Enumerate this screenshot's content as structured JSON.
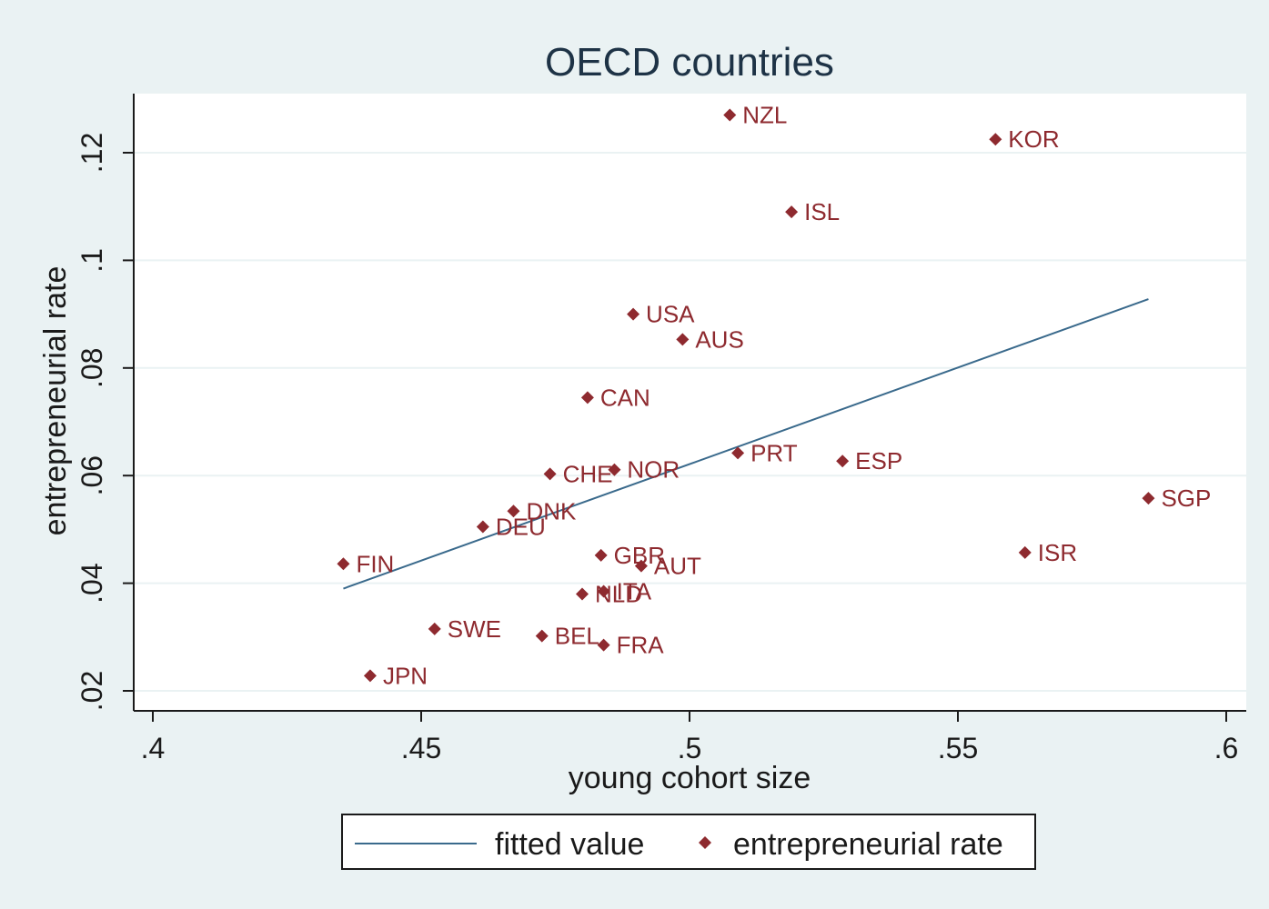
{
  "chart_data": {
    "type": "scatter",
    "title": "OECD countries",
    "xlabel": "young cohort size",
    "ylabel": "entrepreneurial rate",
    "xlim": [
      0.4,
      0.6
    ],
    "ylim": [
      0.02,
      0.13
    ],
    "x_ticks": [
      {
        "value": 0.4,
        "label": ".4"
      },
      {
        "value": 0.45,
        "label": ".45"
      },
      {
        "value": 0.5,
        "label": ".5"
      },
      {
        "value": 0.55,
        "label": ".55"
      },
      {
        "value": 0.6,
        "label": ".6"
      }
    ],
    "y_ticks": [
      {
        "value": 0.02,
        "label": ".02"
      },
      {
        "value": 0.04,
        "label": ".04"
      },
      {
        "value": 0.06,
        "label": ".06"
      },
      {
        "value": 0.08,
        "label": ".08"
      },
      {
        "value": 0.1,
        "label": ".1"
      },
      {
        "value": 0.12,
        "label": ".12"
      }
    ],
    "grid": true,
    "legend": "bottom",
    "colors": {
      "points": "#8e2a2f",
      "fit_line": "#3a6a8c"
    },
    "series": [
      {
        "name": "entrepreneurial rate",
        "kind": "scatter",
        "points": [
          {
            "label": "NZL",
            "x": 0.5075,
            "y": 0.127
          },
          {
            "label": "KOR",
            "x": 0.557,
            "y": 0.1225
          },
          {
            "label": "ISL",
            "x": 0.519,
            "y": 0.109
          },
          {
            "label": "USA",
            "x": 0.4895,
            "y": 0.09
          },
          {
            "label": "AUS",
            "x": 0.4987,
            "y": 0.0853
          },
          {
            "label": "CAN",
            "x": 0.481,
            "y": 0.0745
          },
          {
            "label": "PRT",
            "x": 0.509,
            "y": 0.0642
          },
          {
            "label": "ESP",
            "x": 0.5285,
            "y": 0.0627
          },
          {
            "label": "CHE",
            "x": 0.474,
            "y": 0.0603
          },
          {
            "label": "NOR",
            "x": 0.486,
            "y": 0.0611
          },
          {
            "label": "SGP",
            "x": 0.5855,
            "y": 0.0558
          },
          {
            "label": "DNK",
            "x": 0.4672,
            "y": 0.0534
          },
          {
            "label": "DEU",
            "x": 0.4615,
            "y": 0.0505
          },
          {
            "label": "ISR",
            "x": 0.5625,
            "y": 0.0457
          },
          {
            "label": "GBR",
            "x": 0.4835,
            "y": 0.0452
          },
          {
            "label": "AUT",
            "x": 0.491,
            "y": 0.0432
          },
          {
            "label": "FIN",
            "x": 0.4355,
            "y": 0.0436
          },
          {
            "label": "ITA",
            "x": 0.484,
            "y": 0.0385
          },
          {
            "label": "NLD",
            "x": 0.48,
            "y": 0.038
          },
          {
            "label": "SWE",
            "x": 0.4525,
            "y": 0.0315
          },
          {
            "label": "BEL",
            "x": 0.4725,
            "y": 0.0302
          },
          {
            "label": "FRA",
            "x": 0.484,
            "y": 0.0285
          },
          {
            "label": "JPN",
            "x": 0.4405,
            "y": 0.0228
          }
        ]
      },
      {
        "name": "fitted value",
        "kind": "line",
        "points": [
          {
            "x": 0.4355,
            "y": 0.039
          },
          {
            "x": 0.5855,
            "y": 0.0928
          }
        ]
      }
    ]
  }
}
